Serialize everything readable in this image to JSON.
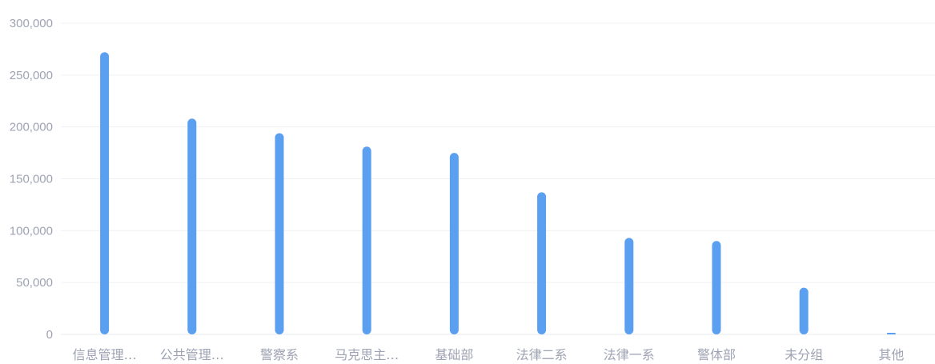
{
  "chart_data": {
    "type": "bar",
    "categories": [
      "信息管理…",
      "公共管理…",
      "警察系",
      "马克思主…",
      "基础部",
      "法律二系",
      "法律一系",
      "警体部",
      "未分组",
      "其他"
    ],
    "values": [
      272000,
      208000,
      194000,
      181000,
      175000,
      137000,
      93000,
      90000,
      45000,
      1200
    ],
    "ylim": [
      0,
      300000
    ],
    "yticks": [
      0,
      50000,
      100000,
      150000,
      200000,
      250000,
      300000
    ],
    "ytick_labels": [
      "0",
      "50,000",
      "100,000",
      "150,000",
      "200,000",
      "250,000",
      "300,000"
    ],
    "grid": true,
    "legend": "none",
    "bar_color": "#5b9ff0"
  }
}
